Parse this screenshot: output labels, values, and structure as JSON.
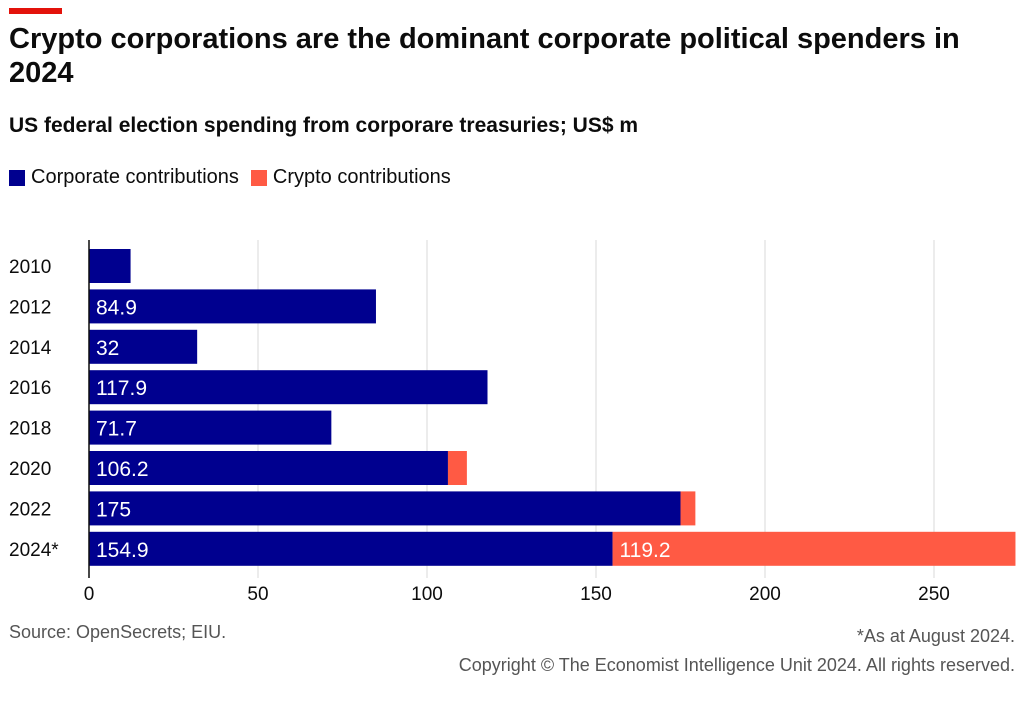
{
  "title": "Crypto corporations are the dominant corporate political spenders in 2024",
  "subtitle": "US federal election spending from corporare treasuries; US$ m",
  "source": "Source: OpenSecrets; EIU.",
  "footnote": "*As at August 2024.",
  "copyright": "Copyright © The Economist Intelligence Unit 2024. All rights reserved.",
  "chart_data": {
    "type": "bar",
    "orientation": "horizontal",
    "stacked": true,
    "categories": [
      "2010",
      "2012",
      "2014",
      "2016",
      "2018",
      "2020",
      "2022",
      "2024*"
    ],
    "series": [
      {
        "name": "Corporate contributions",
        "color": "#00008f",
        "values": [
          12.3,
          84.9,
          32,
          117.9,
          71.7,
          106.2,
          175,
          154.9
        ],
        "labels": [
          "",
          "84.9",
          "32",
          "117.9",
          "71.7",
          "106.2",
          "175",
          "154.9"
        ]
      },
      {
        "name": "Crypto contributions",
        "color": "#ff5a44",
        "values": [
          0,
          0,
          0,
          0,
          0,
          5.6,
          4.4,
          119.2
        ],
        "labels": [
          "",
          "",
          "",
          "",
          "",
          "",
          "",
          "119.2"
        ]
      }
    ],
    "xlim": [
      0,
      274
    ],
    "xticks": [
      "0",
      "50",
      "100",
      "150",
      "200",
      "250"
    ],
    "grid": true,
    "legend": "top-left"
  }
}
